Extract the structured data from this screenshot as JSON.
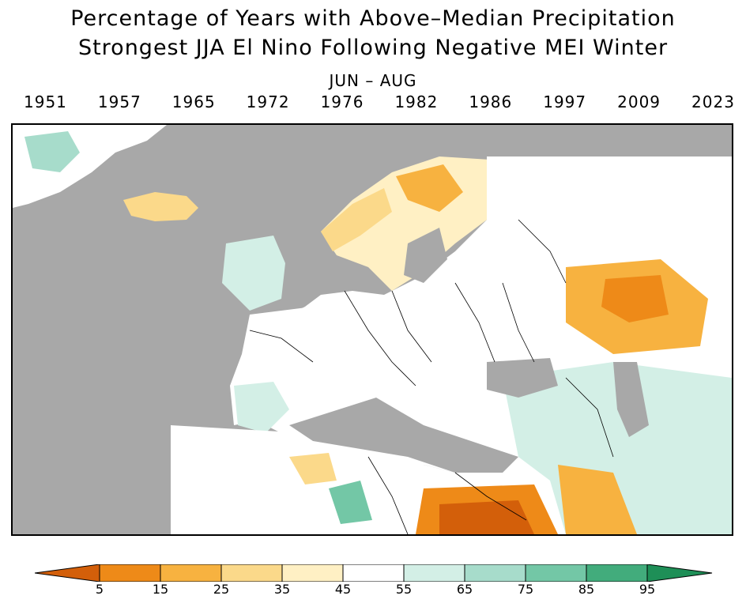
{
  "title": {
    "line1": "Percentage of Years with Above–Median Precipitation",
    "line2": "Strongest JJA El Nino Following Negative MEI Winter",
    "season": "JUN – AUG"
  },
  "years": [
    "1951",
    "1957",
    "1965",
    "1972",
    "1976",
    "1982",
    "1986",
    "1997",
    "2009",
    "2023"
  ],
  "legend": {
    "ticks": [
      "5",
      "15",
      "25",
      "35",
      "45",
      "55",
      "65",
      "75",
      "85",
      "95"
    ],
    "colors": [
      "#d35f0a",
      "#ee8a18",
      "#f7b240",
      "#fbd98a",
      "#fff0c4",
      "#ffffff",
      "#d3efe6",
      "#a7dccb",
      "#73c7a6",
      "#42ac7c",
      "#1e8f57"
    ]
  },
  "map": {
    "ocean_mask_color": "#a8a8a8",
    "land_neutral_color": "#ffffff"
  }
}
